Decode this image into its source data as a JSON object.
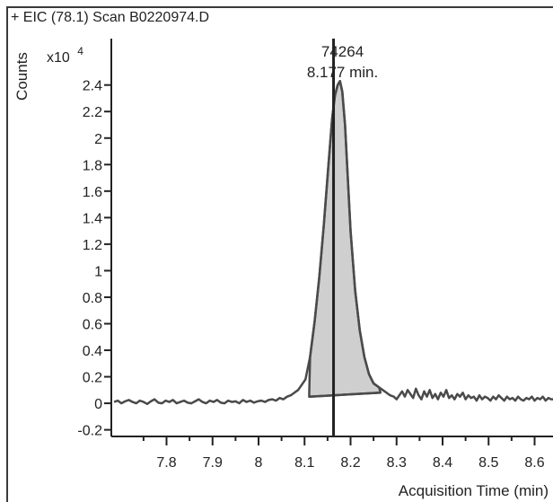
{
  "chart_data": {
    "type": "line",
    "title": "+ EIC (78.1) Scan B0220974.D",
    "xlabel": "Acquisition Time (min)",
    "ylabel": "Counts",
    "y_multiplier_label": "x10",
    "y_multiplier_exponent": "4",
    "xlim": [
      7.68,
      8.64
    ],
    "ylim": [
      -0.25,
      2.75
    ],
    "x_ticks": [
      7.8,
      7.9,
      8,
      8.1,
      8.2,
      8.3,
      8.4,
      8.5,
      8.6
    ],
    "x_tick_labels": [
      "7.8",
      "7.9",
      "8",
      "8.1",
      "8.2",
      "8.3",
      "8.4",
      "8.5",
      "8.6"
    ],
    "y_ticks": [
      -0.2,
      0,
      0.2,
      0.4,
      0.6,
      0.8,
      1,
      1.2,
      1.4,
      1.6,
      1.8,
      2,
      2.2,
      2.4
    ],
    "y_tick_labels": [
      "-0.2",
      "0",
      "0.2",
      "0.4",
      "0.6",
      "0.8",
      "1",
      "1.2",
      "1.4",
      "1.6",
      "1.8",
      "2",
      "2.2",
      "2.4"
    ],
    "grid": false,
    "series": [
      {
        "x": [
          7.686,
          7.694,
          7.702,
          7.71,
          7.718,
          7.726,
          7.734,
          7.742,
          7.75,
          7.758,
          7.766,
          7.774,
          7.782,
          7.79,
          7.798,
          7.806,
          7.814,
          7.822,
          7.83,
          7.838,
          7.846,
          7.854,
          7.862,
          7.87,
          7.878,
          7.886,
          7.894,
          7.902,
          7.91,
          7.918,
          7.926,
          7.934,
          7.942,
          7.95,
          7.958,
          7.966,
          7.974,
          7.982,
          7.99,
          7.998,
          8.006,
          8.014,
          8.022,
          8.03,
          8.038,
          8.046,
          8.054,
          8.062,
          8.07,
          8.078,
          8.086,
          8.094,
          8.102,
          8.112,
          8.122,
          8.132,
          8.142,
          8.152,
          8.16,
          8.166,
          8.172,
          8.177,
          8.182,
          8.188,
          8.194,
          8.2,
          8.21,
          8.22,
          8.23,
          8.24,
          8.25,
          8.262,
          8.27,
          8.278,
          8.286,
          8.294,
          8.3,
          8.306,
          8.312,
          8.318,
          8.324,
          8.33,
          8.336,
          8.342,
          8.348,
          8.354,
          8.36,
          8.366,
          8.372,
          8.378,
          8.384,
          8.39,
          8.396,
          8.402,
          8.408,
          8.414,
          8.42,
          8.426,
          8.432,
          8.438,
          8.444,
          8.45,
          8.456,
          8.462,
          8.468,
          8.474,
          8.48,
          8.486,
          8.492,
          8.498,
          8.504,
          8.51,
          8.516,
          8.522,
          8.528,
          8.534,
          8.54,
          8.546,
          8.552,
          8.558,
          8.564,
          8.57,
          8.576,
          8.582,
          8.588,
          8.594,
          8.6,
          8.606,
          8.612,
          8.618,
          8.624,
          8.63,
          8.636,
          8.64
        ],
        "y": [
          0.01,
          0.02,
          0.0,
          0.015,
          0.025,
          0.01,
          0.0,
          0.02,
          0.01,
          -0.005,
          0.015,
          0.03,
          0.005,
          0.0,
          0.02,
          0.01,
          0.025,
          0.0,
          0.01,
          0.02,
          0.005,
          0.0,
          0.015,
          0.03,
          0.01,
          0.0,
          0.02,
          0.01,
          0.025,
          0.005,
          0.0,
          0.02,
          0.01,
          0.015,
          0.0,
          0.025,
          0.01,
          0.02,
          0.005,
          0.015,
          0.02,
          0.01,
          0.025,
          0.03,
          0.02,
          0.04,
          0.03,
          0.05,
          0.06,
          0.08,
          0.1,
          0.14,
          0.18,
          0.35,
          0.62,
          0.95,
          1.35,
          1.8,
          2.15,
          2.32,
          2.4,
          2.43,
          2.35,
          2.1,
          1.7,
          1.3,
          0.85,
          0.55,
          0.35,
          0.22,
          0.15,
          0.12,
          0.1,
          0.08,
          0.06,
          0.05,
          0.03,
          0.06,
          0.09,
          0.05,
          0.1,
          0.07,
          0.04,
          0.11,
          0.06,
          0.03,
          0.09,
          0.05,
          0.1,
          0.04,
          0.07,
          0.03,
          0.08,
          0.05,
          0.1,
          0.04,
          0.06,
          0.03,
          0.07,
          0.05,
          0.08,
          0.03,
          0.06,
          0.04,
          0.05,
          0.02,
          0.06,
          0.03,
          0.05,
          0.04,
          0.02,
          0.05,
          0.03,
          0.06,
          0.04,
          0.02,
          0.05,
          0.03,
          0.04,
          0.02,
          0.05,
          0.03,
          0.02,
          0.04,
          0.03,
          0.05,
          0.02,
          0.04,
          0.03,
          0.05,
          0.02,
          0.04,
          0.03,
          0.03
        ]
      }
    ],
    "integrated_peak": {
      "start_x": 8.11,
      "end_x": 8.265,
      "baseline_start_y": 0.05,
      "baseline_end_y": 0.08
    },
    "annotations": [
      {
        "type": "marker-line",
        "x": 8.163,
        "label_value": "74264",
        "label_time": "8.177 min."
      }
    ]
  }
}
